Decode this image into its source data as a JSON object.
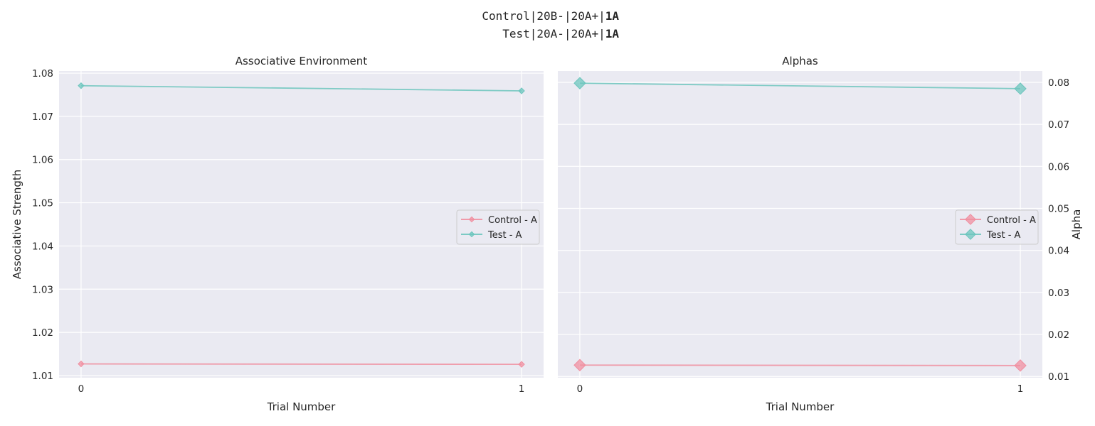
{
  "suptitle": {
    "line1": {
      "prefix": "Control|20B-|20A+|",
      "bold": "1A"
    },
    "line2": {
      "prefix": "Test|20A-|20A+|",
      "bold": "1A"
    }
  },
  "colors": {
    "control": "#f08fa0",
    "test": "#6cc5bd",
    "panel_bg": "#eaeaf2",
    "grid": "#ffffff"
  },
  "chart_data": [
    {
      "type": "line",
      "title": "Associative Environment",
      "xlabel": "Trial Number",
      "ylabel": "Associative Strength",
      "x": [
        0,
        1
      ],
      "xticks": [
        "0",
        "1"
      ],
      "xlim": [
        -0.05,
        1.05
      ],
      "ylim": [
        1.0095,
        1.0805
      ],
      "yticks": [
        "1.01",
        "1.02",
        "1.03",
        "1.04",
        "1.05",
        "1.06",
        "1.07",
        "1.08"
      ],
      "ytick_values": [
        1.01,
        1.02,
        1.03,
        1.04,
        1.05,
        1.06,
        1.07,
        1.08
      ],
      "y_axis_side": "left",
      "marker_size": "small",
      "grid": true,
      "legend_position": "center-right",
      "series": [
        {
          "name": "Control - A",
          "color": "#f08fa0",
          "values": [
            1.0127,
            1.0126
          ]
        },
        {
          "name": "Test - A",
          "color": "#6cc5bd",
          "values": [
            1.0771,
            1.0759
          ]
        }
      ]
    },
    {
      "type": "line",
      "title": "Alphas",
      "xlabel": "Trial Number",
      "ylabel": "Alpha",
      "x": [
        0,
        1
      ],
      "xticks": [
        "0",
        "1"
      ],
      "xlim": [
        -0.05,
        1.05
      ],
      "ylim": [
        0.0097,
        0.0827
      ],
      "yticks": [
        "0.01",
        "0.02",
        "0.03",
        "0.04",
        "0.05",
        "0.06",
        "0.07",
        "0.08"
      ],
      "ytick_values": [
        0.01,
        0.02,
        0.03,
        0.04,
        0.05,
        0.06,
        0.07,
        0.08
      ],
      "y_axis_side": "right",
      "marker_size": "large",
      "grid": true,
      "legend_position": "center-right",
      "series": [
        {
          "name": "Control - A",
          "color": "#f08fa0",
          "values": [
            0.0127,
            0.0126
          ]
        },
        {
          "name": "Test - A",
          "color": "#6cc5bd",
          "values": [
            0.0798,
            0.0785
          ]
        }
      ]
    }
  ]
}
